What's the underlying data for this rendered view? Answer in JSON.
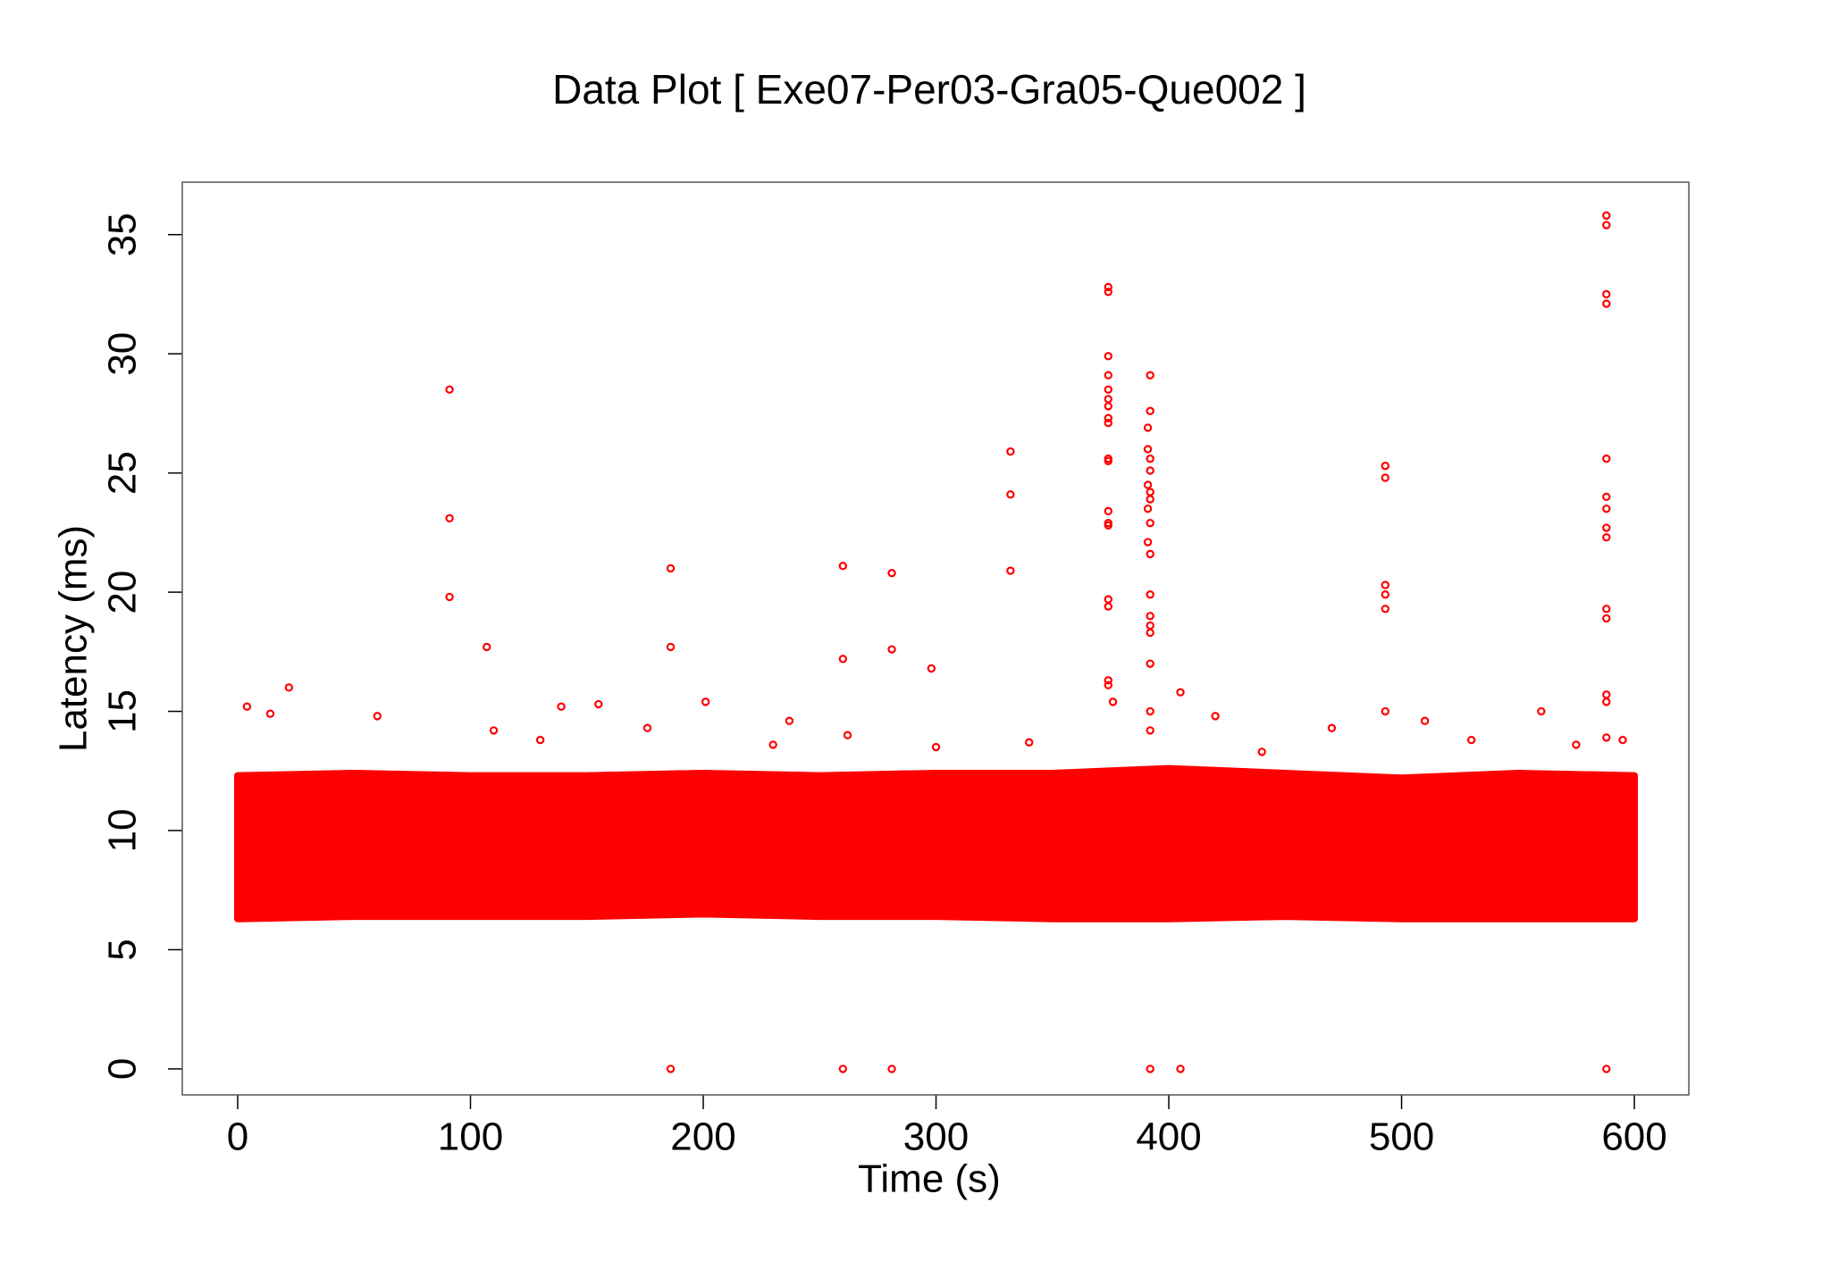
{
  "chart_data": {
    "type": "scatter",
    "title": "Data Plot [ Exe07-Per03-Gra05-Que002 ]",
    "x_label": "Time (s)",
    "y_label": "Latency (ms)",
    "color": "#ff0000",
    "xlim": [
      -23.8,
      623.4
    ],
    "ylim": [
      -1.09,
      37.2
    ],
    "xticks": [
      0,
      100,
      200,
      300,
      400,
      500,
      600
    ],
    "yticks": [
      0,
      5,
      10,
      15,
      20,
      25,
      30,
      35
    ],
    "band": {
      "x": [
        0,
        50,
        100,
        150,
        200,
        250,
        300,
        350,
        400,
        450,
        500,
        550,
        600
      ],
      "low": [
        6.3,
        6.4,
        6.4,
        6.4,
        6.5,
        6.4,
        6.4,
        6.3,
        6.3,
        6.4,
        6.3,
        6.3,
        6.3
      ],
      "high": [
        12.3,
        12.4,
        12.3,
        12.3,
        12.4,
        12.3,
        12.4,
        12.4,
        12.6,
        12.4,
        12.2,
        12.4,
        12.3
      ]
    },
    "x": [
      91,
      91,
      91,
      107,
      186,
      186,
      186,
      260,
      260,
      260,
      281,
      281,
      281,
      298,
      332,
      332,
      332,
      374,
      374,
      374,
      374,
      374,
      374,
      374,
      374,
      374,
      374,
      374,
      374,
      374,
      374,
      374,
      374,
      374,
      374,
      376,
      392,
      392,
      391,
      391,
      392,
      392,
      391,
      392,
      392,
      391,
      392,
      391,
      392,
      392,
      392,
      392,
      392,
      392,
      392,
      392,
      392,
      405,
      405,
      493,
      493,
      493,
      493,
      493,
      493,
      588,
      588,
      588,
      588,
      588,
      588,
      588,
      588,
      588,
      588,
      588,
      588,
      588,
      588,
      588,
      22,
      4,
      14,
      60,
      139,
      155,
      201,
      237,
      110,
      130,
      176,
      230,
      262,
      300,
      340,
      420,
      440,
      470,
      510,
      530,
      560,
      575,
      595
    ],
    "y": [
      28.5,
      23.1,
      19.8,
      17.7,
      21,
      17.7,
      0,
      21.1,
      17.2,
      0,
      20.8,
      17.6,
      0,
      16.8,
      25.9,
      24.1,
      20.9,
      32.8,
      32.6,
      29.9,
      29.1,
      28.5,
      28.1,
      27.8,
      27.3,
      27.1,
      25.6,
      25.5,
      23.4,
      22.9,
      22.8,
      19.7,
      19.4,
      16.3,
      16.1,
      15.4,
      29.1,
      27.6,
      26.9,
      26,
      25.6,
      25.1,
      24.5,
      24.2,
      23.9,
      23.5,
      22.9,
      22.1,
      21.6,
      19.9,
      19,
      18.6,
      18.3,
      17,
      15,
      14.2,
      0,
      15.8,
      0,
      25.3,
      24.8,
      20.3,
      19.9,
      19.3,
      15,
      35.8,
      35.4,
      32.5,
      32.1,
      25.6,
      24,
      23.5,
      22.7,
      22.3,
      19.3,
      18.9,
      15.7,
      15.4,
      13.9,
      0,
      16,
      15.2,
      14.9,
      14.8,
      15.2,
      15.3,
      15.4,
      14.6,
      14.2,
      13.8,
      14.3,
      13.6,
      14.0,
      13.5,
      13.7,
      14.8,
      13.3,
      14.3,
      14.6,
      13.8,
      15.0,
      13.6,
      13.8
    ]
  }
}
